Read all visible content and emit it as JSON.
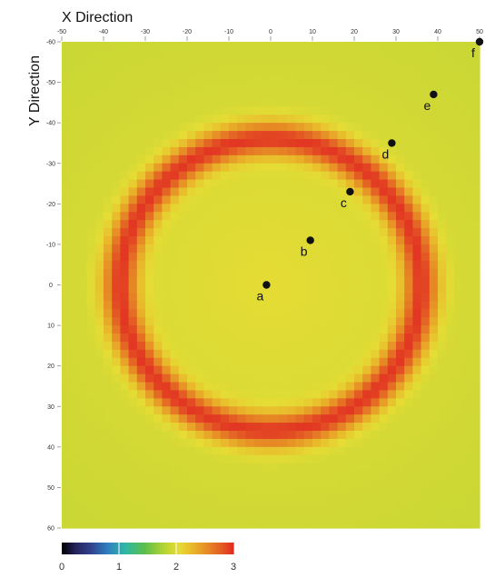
{
  "chart_data": {
    "type": "heatmap",
    "xlabel": "X Direction",
    "ylabel": "Y Direction",
    "xlim": [
      -50,
      50
    ],
    "ylim": [
      -60,
      60
    ],
    "x_ticks": [
      -50,
      -40,
      -30,
      -20,
      -10,
      0,
      10,
      20,
      30,
      40,
      50
    ],
    "y_ticks": [
      -60,
      -50,
      -40,
      -30,
      -20,
      -10,
      0,
      10,
      20,
      30,
      40,
      50,
      60
    ],
    "y_axis_direction": "top-to-bottom",
    "field": {
      "description": "radial ring pattern centred at the origin",
      "center": [
        0,
        0
      ],
      "ring_radius": 36,
      "center_value": 2.05,
      "ring_value": 2.95,
      "outer_value": 1.9
    },
    "colorbar": {
      "min": 0,
      "max": 3,
      "tick_labels": [
        "0",
        "1",
        "2",
        "3"
      ],
      "stops": [
        {
          "value": 0.0,
          "color": "#000000"
        },
        {
          "value": 0.25,
          "color": "#26245e"
        },
        {
          "value": 0.5,
          "color": "#31408c"
        },
        {
          "value": 0.8,
          "color": "#2f7fc0"
        },
        {
          "value": 1.1,
          "color": "#2fb6a6"
        },
        {
          "value": 1.45,
          "color": "#5cbf4a"
        },
        {
          "value": 1.8,
          "color": "#b8d435"
        },
        {
          "value": 2.05,
          "color": "#e5dc35"
        },
        {
          "value": 2.3,
          "color": "#e9b52a"
        },
        {
          "value": 2.55,
          "color": "#e68a25"
        },
        {
          "value": 2.8,
          "color": "#e45a24"
        },
        {
          "value": 3.0,
          "color": "#e12b22"
        }
      ]
    },
    "points": [
      {
        "label": "a",
        "x": -1,
        "y": 0
      },
      {
        "label": "b",
        "x": 9.5,
        "y": -11
      },
      {
        "label": "c",
        "x": 19,
        "y": -23
      },
      {
        "label": "d",
        "x": 29,
        "y": -35
      },
      {
        "label": "e",
        "x": 39,
        "y": -47
      },
      {
        "label": "f",
        "x": 50,
        "y": -60
      }
    ]
  }
}
